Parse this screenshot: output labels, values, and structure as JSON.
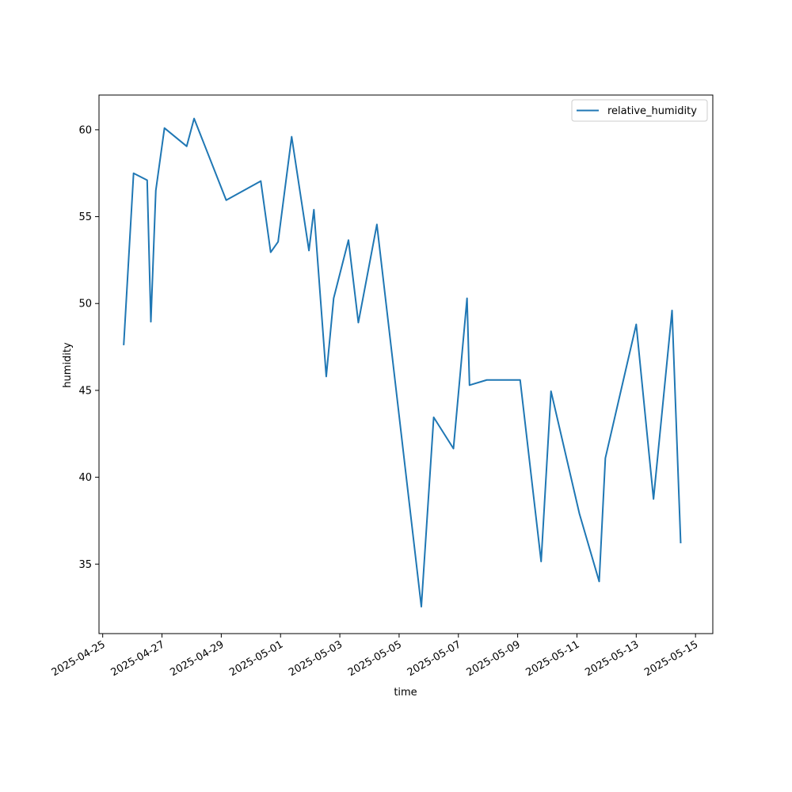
{
  "chart_data": {
    "type": "line",
    "title": "",
    "xlabel": "time",
    "ylabel": "humidity",
    "xlim": [
      "2025-04-24T21:00",
      "2025-05-15T14:00"
    ],
    "ylim": [
      31.0,
      62.0
    ],
    "grid": false,
    "legend_position": "top-right",
    "x_tick_labels": [
      "2025-04-25",
      "2025-04-27",
      "2025-04-29",
      "2025-05-01",
      "2025-05-03",
      "2025-05-05",
      "2025-05-07",
      "2025-05-09",
      "2025-05-11",
      "2025-05-13",
      "2025-05-15"
    ],
    "y_tick_labels": [
      "35",
      "40",
      "45",
      "50",
      "55",
      "60"
    ],
    "series": [
      {
        "name": "relative_humidity",
        "color": "#1f77b4",
        "points": [
          [
            "2025-04-25T17:00",
            47.6
          ],
          [
            "2025-04-26T01:00",
            57.5
          ],
          [
            "2025-04-26T12:00",
            57.1
          ],
          [
            "2025-04-26T15:00",
            48.95
          ],
          [
            "2025-04-26T19:00",
            56.5
          ],
          [
            "2025-04-27T02:00",
            60.1
          ],
          [
            "2025-04-27T20:00",
            59.05
          ],
          [
            "2025-04-28T02:00",
            60.65
          ],
          [
            "2025-04-29T04:00",
            55.95
          ],
          [
            "2025-04-30T08:00",
            57.05
          ],
          [
            "2025-04-30T16:00",
            52.95
          ],
          [
            "2025-04-30T22:00",
            53.55
          ],
          [
            "2025-05-01T09:00",
            59.6
          ],
          [
            "2025-05-01T23:00",
            53.05
          ],
          [
            "2025-05-02T03:00",
            55.4
          ],
          [
            "2025-05-02T13:00",
            45.8
          ],
          [
            "2025-05-02T19:00",
            50.3
          ],
          [
            "2025-05-03T07:00",
            53.65
          ],
          [
            "2025-05-03T15:00",
            48.9
          ],
          [
            "2025-05-04T06:00",
            54.55
          ],
          [
            "2025-05-05T18:00",
            32.55
          ],
          [
            "2025-05-06T04:00",
            43.45
          ],
          [
            "2025-05-06T20:00",
            41.65
          ],
          [
            "2025-05-07T07:00",
            50.3
          ],
          [
            "2025-05-07T09:00",
            45.3
          ],
          [
            "2025-05-07T23:00",
            45.6
          ],
          [
            "2025-05-09T02:00",
            45.6
          ],
          [
            "2025-05-09T19:00",
            35.15
          ],
          [
            "2025-05-10T03:00",
            44.95
          ],
          [
            "2025-05-11T02:00",
            37.9
          ],
          [
            "2025-05-11T18:00",
            34.0
          ],
          [
            "2025-05-11T23:00",
            41.1
          ],
          [
            "2025-05-13T00:00",
            48.8
          ],
          [
            "2025-05-13T14:00",
            38.75
          ],
          [
            "2025-05-14T05:00",
            49.6
          ],
          [
            "2025-05-14T12:00",
            36.2
          ]
        ]
      }
    ]
  }
}
